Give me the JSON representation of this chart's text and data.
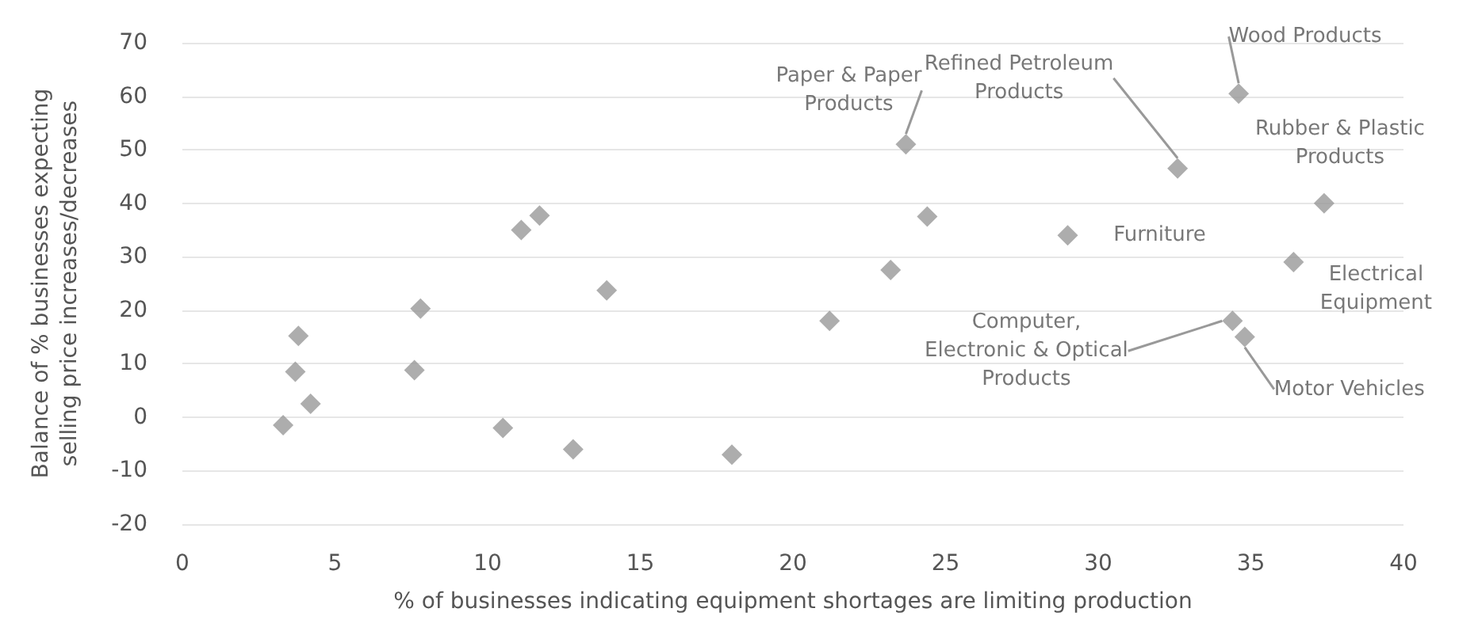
{
  "chart_data": {
    "type": "scatter",
    "xlabel": "% of businesses indicating equipment shortages are limiting production",
    "ylabel": "Balance of % businesses expecting\nselling price increases/decreases",
    "x": [
      3.3,
      3.7,
      3.8,
      4.2,
      7.6,
      7.8,
      10.5,
      11.1,
      11.7,
      12.8,
      13.9,
      18,
      21.2,
      23.2,
      23.7,
      24.4,
      29,
      32.6,
      34.6,
      34.4,
      34.8,
      36.4,
      37.4
    ],
    "values": [
      -1.5,
      8.5,
      15.2,
      2.5,
      8.8,
      20.3,
      -2,
      35,
      37.7,
      -6,
      23.7,
      -7,
      18,
      27.5,
      51,
      37.5,
      34,
      46.5,
      60.5,
      18,
      15,
      29,
      40
    ],
    "color": "#999999",
    "marker": "diamond",
    "xlim": [
      0,
      40
    ],
    "xticks": [
      0,
      5,
      10,
      15,
      20,
      25,
      30,
      35,
      40
    ],
    "ylim": [
      -20,
      70
    ],
    "yticks": [
      -20,
      -10,
      0,
      10,
      20,
      30,
      40,
      50,
      60,
      70
    ],
    "grid": "y",
    "annotations": [
      {
        "text": "Paper & Paper\nProducts",
        "x": 23.7,
        "y": 51
      },
      {
        "text": "Refined Petroleum\nProducts",
        "x": 32.6,
        "y": 46.5
      },
      {
        "text": "Wood Products",
        "x": 34.6,
        "y": 60.5
      },
      {
        "text": "Rubber & Plastic\nProducts",
        "x": 37.4,
        "y": 40
      },
      {
        "text": "Furniture",
        "x": 29,
        "y": 34
      },
      {
        "text": "Electrical\nEquipment",
        "x": 36.4,
        "y": 29
      },
      {
        "text": "Computer,\nElectronic & Optical\nProducts",
        "x": 34.4,
        "y": 18
      },
      {
        "text": "Motor Vehicles",
        "x": 34.8,
        "y": 15
      }
    ]
  }
}
